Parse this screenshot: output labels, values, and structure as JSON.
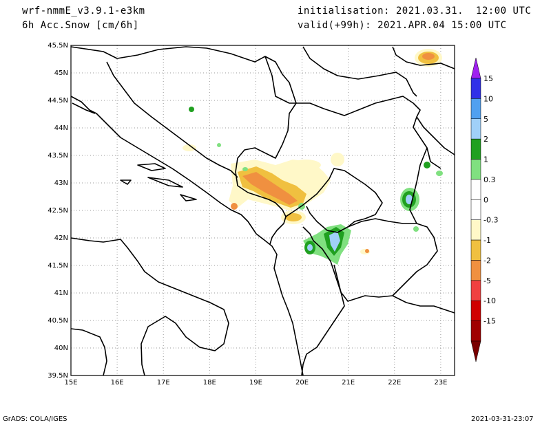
{
  "header": {
    "model": "wrf-nmmE_v3.9.1-e3km",
    "field": "6h Acc.Snow [cm/6h]",
    "init": "initialisation: 2021.03.31.  12:00 UTC",
    "valid": "valid(+99h): 2021.APR.04 15:00 UTC"
  },
  "axes": {
    "lon_labels": [
      "15E",
      "16E",
      "17E",
      "18E",
      "19E",
      "20E",
      "21E",
      "22E",
      "23E"
    ],
    "lat_labels": [
      "45.5N",
      "45N",
      "44.5N",
      "44N",
      "43.5N",
      "43N",
      "42.5N",
      "42N",
      "41.5N",
      "41N",
      "40.5N",
      "40N",
      "39.5N"
    ],
    "lon_range": [
      15,
      23.3
    ],
    "lat_range": [
      39.5,
      45.5
    ]
  },
  "colorbar": {
    "levels": [
      "15",
      "10",
      "5",
      "2",
      "1",
      "0.3",
      "0",
      "-0.3",
      "-1",
      "-2",
      "-5",
      "-10",
      "-15"
    ],
    "colors": [
      "#a020f0",
      "#3030e8",
      "#50a0f0",
      "#a0d0f8",
      "#20a020",
      "#80e080",
      "#ffffff",
      "#ffffff",
      "#fff8c8",
      "#f0c040",
      "#f09040",
      "#f04040",
      "#d00000",
      "#a00000",
      "#7a0000"
    ]
  },
  "footer": {
    "left": "GrADS: COLA/IGES",
    "right": "2021-03-31-23:07"
  }
}
